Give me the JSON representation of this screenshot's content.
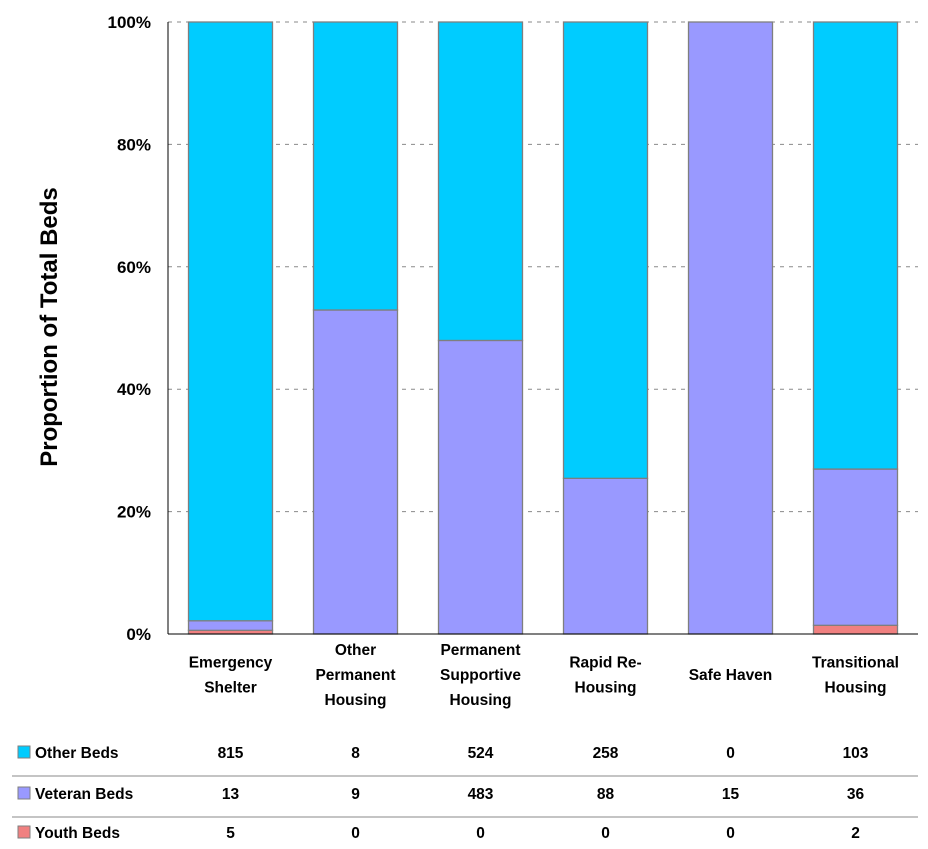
{
  "chart_data": {
    "type": "bar",
    "stacked": true,
    "normalized": true,
    "ylabel": "Proportion of Total Beds",
    "ylim": [
      0,
      100
    ],
    "yticks": [
      "0%",
      "20%",
      "40%",
      "60%",
      "80%",
      "100%"
    ],
    "grid": true,
    "categories": [
      [
        "Emergency",
        "Shelter"
      ],
      [
        "Other",
        "Permanent",
        "Housing"
      ],
      [
        "Permanent",
        "Supportive",
        "Housing"
      ],
      [
        "Rapid Re-",
        "Housing"
      ],
      [
        "Safe Haven"
      ],
      [
        "Transitional",
        "Housing"
      ]
    ],
    "series": [
      {
        "name": "Youth Beds",
        "color": "#f08080",
        "values": [
          "5",
          "0",
          "0",
          "0",
          "0",
          "2"
        ]
      },
      {
        "name": "Veteran Beds",
        "color": "#9999ff",
        "values": [
          "13",
          "9",
          "483",
          "88",
          "15",
          "36"
        ]
      },
      {
        "name": "Other Beds",
        "color": "#00ccff",
        "values": [
          "815",
          "8",
          "524",
          "258",
          "0",
          "103"
        ]
      }
    ],
    "table_order": [
      "Other Beds",
      "Veteran Beds",
      "Youth Beds"
    ]
  }
}
